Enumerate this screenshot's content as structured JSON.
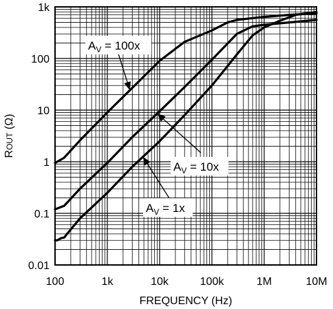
{
  "chart_data": {
    "type": "line",
    "x_scale": "log",
    "y_scale": "log",
    "xlim": [
      100,
      10000000
    ],
    "ylim": [
      0.01,
      1000
    ],
    "grid": "on",
    "xlabel": "FREQUENCY (Hz)",
    "ylabel": {
      "main": "R",
      "sub": "OUT",
      "unit": " (Ω)"
    },
    "x_ticks": [
      {
        "value": 100,
        "label": "100"
      },
      {
        "value": 1000,
        "label": "1k"
      },
      {
        "value": 10000,
        "label": "10k"
      },
      {
        "value": 100000,
        "label": "100k"
      },
      {
        "value": 1000000,
        "label": "1M"
      },
      {
        "value": 10000000,
        "label": "10M"
      }
    ],
    "y_ticks": [
      {
        "value": 0.01,
        "label": "0.01"
      },
      {
        "value": 0.1,
        "label": "0.1"
      },
      {
        "value": 1,
        "label": "1"
      },
      {
        "value": 10,
        "label": "10"
      },
      {
        "value": 100,
        "label": "100"
      },
      {
        "value": 1000,
        "label": "1k"
      }
    ],
    "series": [
      {
        "label": {
          "main": "A",
          "sub": "V",
          "rest": " = 100x"
        },
        "points": [
          [
            100,
            0.95
          ],
          [
            120,
            1.05
          ],
          [
            150,
            1.2
          ],
          [
            300,
            2.6
          ],
          [
            1000,
            9
          ],
          [
            3000,
            27
          ],
          [
            10000,
            90
          ],
          [
            30000,
            210
          ],
          [
            100000,
            350
          ],
          [
            200000,
            500
          ],
          [
            300000,
            560
          ],
          [
            1000000,
            640
          ],
          [
            3000000,
            700
          ],
          [
            10000000,
            750
          ]
        ]
      },
      {
        "label": {
          "main": "A",
          "sub": "V",
          "rest": " = 10x"
        },
        "points": [
          [
            100,
            0.12
          ],
          [
            150,
            0.14
          ],
          [
            300,
            0.3
          ],
          [
            1000,
            0.95
          ],
          [
            3000,
            3
          ],
          [
            10000,
            9.5
          ],
          [
            30000,
            28
          ],
          [
            100000,
            95
          ],
          [
            300000,
            300
          ],
          [
            600000,
            420
          ],
          [
            1000000,
            450
          ],
          [
            3000000,
            500
          ],
          [
            10000000,
            560
          ]
        ]
      },
      {
        "label": {
          "main": "A",
          "sub": "V",
          "rest": " = 1x"
        },
        "points": [
          [
            100,
            0.03
          ],
          [
            110,
            0.03
          ],
          [
            130,
            0.033
          ],
          [
            150,
            0.034
          ],
          [
            170,
            0.04
          ],
          [
            300,
            0.08
          ],
          [
            1000,
            0.25
          ],
          [
            3000,
            0.8
          ],
          [
            10000,
            2.5
          ],
          [
            30000,
            8
          ],
          [
            100000,
            30
          ],
          [
            300000,
            120
          ],
          [
            600000,
            280
          ],
          [
            1000000,
            400
          ],
          [
            2000000,
            540
          ],
          [
            4000000,
            700
          ],
          [
            10000000,
            800
          ]
        ]
      }
    ]
  }
}
